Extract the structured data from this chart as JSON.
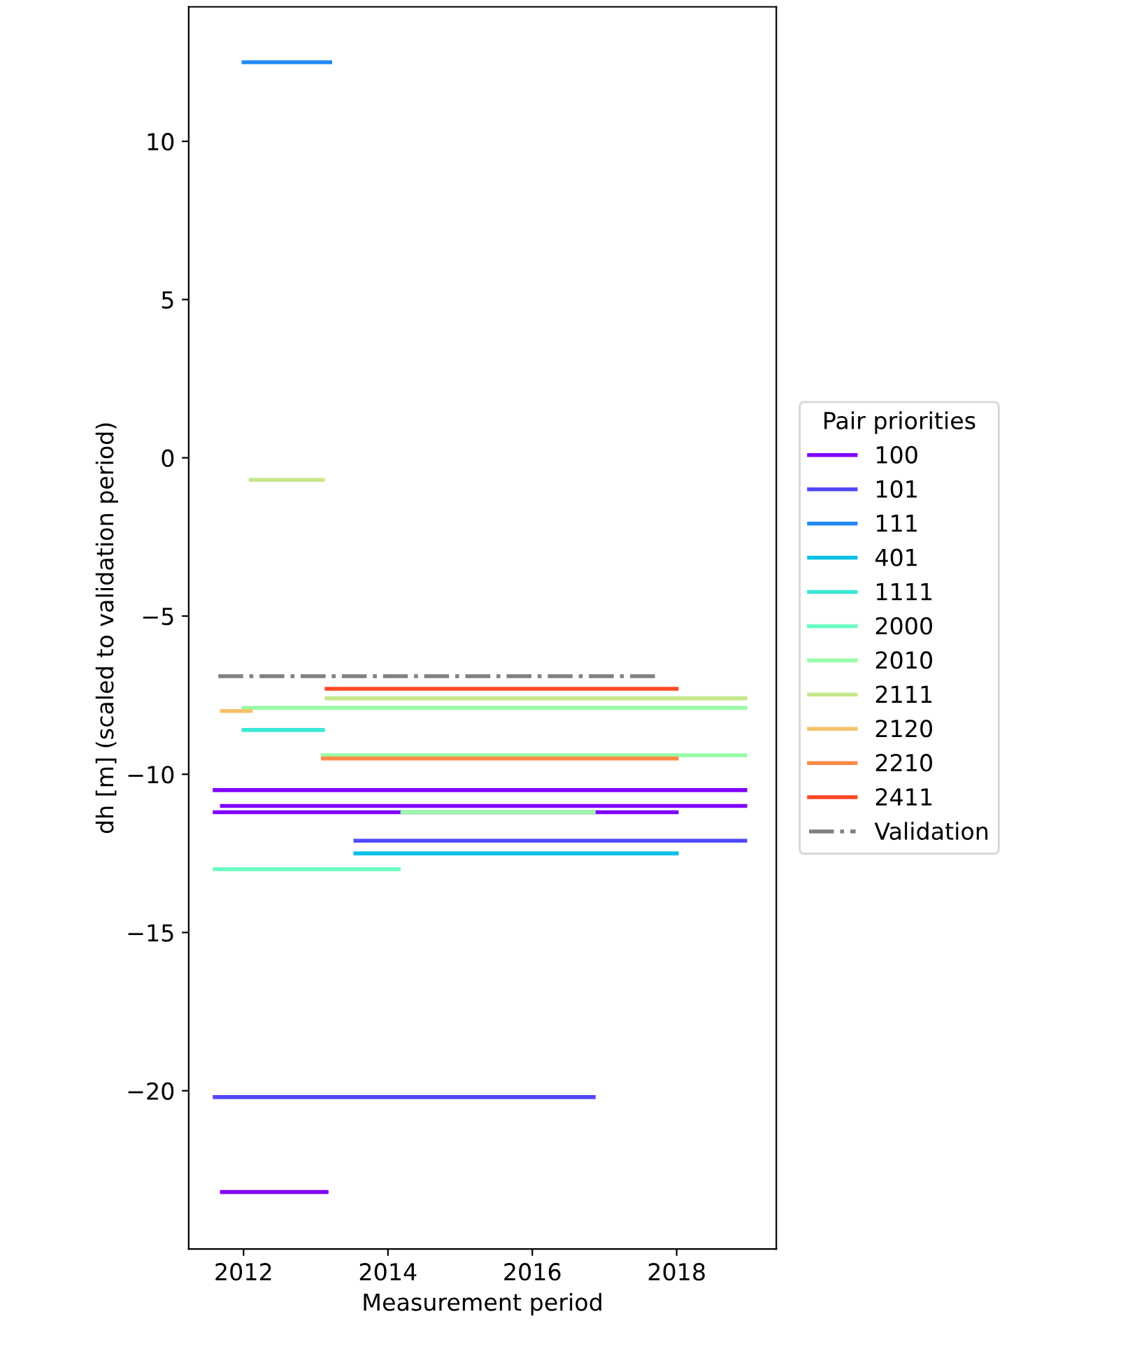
{
  "chart_data": {
    "type": "line",
    "xlabel": "Measurement period",
    "ylabel": "dh [m] (scaled to validation period)",
    "legend_title": "Pair priorities",
    "legend": "right",
    "grid": false,
    "line_style": "solid",
    "marker": "none",
    "xlim": [
      2011.24,
      2019.38
    ],
    "xticks": [
      2012,
      2014,
      2016,
      2018
    ],
    "ylim": [
      -25.0,
      14.25
    ],
    "yticks": [
      -20,
      -15,
      -10,
      -5,
      0,
      5,
      10
    ],
    "series": [
      {
        "name": "100",
        "color": "#8000ff",
        "x": [
          2011.6,
          2018.95,
          null,
          2011.7,
          2018.95,
          null,
          2011.6,
          2018.0,
          null,
          2011.7,
          2013.15
        ],
        "values": [
          -10.5,
          -10.5,
          null,
          -11.0,
          -11.0,
          null,
          -11.2,
          -11.2,
          null,
          -23.2,
          -23.2
        ]
      },
      {
        "name": "101",
        "color": "#5148fc",
        "x": [
          2013.55,
          2018.95,
          null,
          2011.6,
          2016.85
        ],
        "values": [
          -12.1,
          -12.1,
          null,
          -20.2,
          -20.2
        ]
      },
      {
        "name": "111",
        "color": "#238af5",
        "x": [
          2012.0,
          2013.2
        ],
        "values": [
          12.5,
          12.5
        ]
      },
      {
        "name": "401",
        "color": "#0cc1e8",
        "x": [
          2013.55,
          2018.0
        ],
        "values": [
          -12.5,
          -12.5
        ]
      },
      {
        "name": "1111",
        "color": "#3ae8d6",
        "x": [
          2012.0,
          2013.1
        ],
        "values": [
          -8.6,
          -8.6
        ]
      },
      {
        "name": "2000",
        "color": "#68fcc1",
        "x": [
          2011.6,
          2014.15
        ],
        "values": [
          -13.0,
          -13.0
        ]
      },
      {
        "name": "2010",
        "color": "#97fca7",
        "x": [
          2012.0,
          2018.95,
          null,
          2013.1,
          2018.95,
          null,
          2014.2,
          2016.85
        ],
        "values": [
          -7.9,
          -7.9,
          null,
          -9.4,
          -9.4,
          null,
          -11.2,
          -11.2
        ]
      },
      {
        "name": "2111",
        "color": "#c5e88a",
        "x": [
          2012.1,
          2013.1,
          null,
          2013.15,
          2018.95
        ],
        "values": [
          -0.7,
          -0.7,
          null,
          -7.6,
          -7.6
        ]
      },
      {
        "name": "2120",
        "color": "#f3c16a",
        "x": [
          2011.7,
          2012.1
        ],
        "values": [
          -8.0,
          -8.0
        ]
      },
      {
        "name": "2210",
        "color": "#ff8a48",
        "x": [
          2013.1,
          2018.0
        ],
        "values": [
          -9.5,
          -9.5
        ]
      },
      {
        "name": "2411",
        "color": "#ff4824",
        "x": [
          2013.15,
          2018.0
        ],
        "values": [
          -7.3,
          -7.3
        ]
      },
      {
        "name": "Validation",
        "color": "#808080",
        "line_style": "dashdot",
        "x": [
          2011.65,
          2017.7
        ],
        "values": [
          -6.9,
          -6.9
        ]
      }
    ]
  }
}
